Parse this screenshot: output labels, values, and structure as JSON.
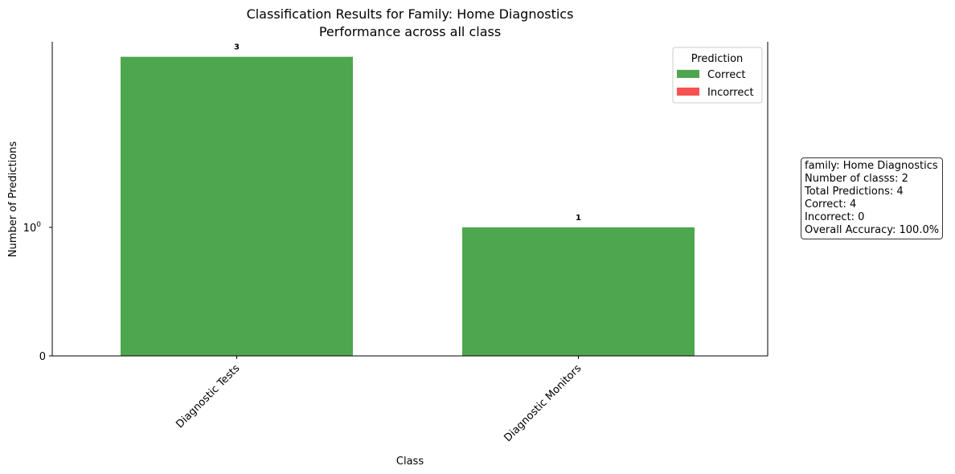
{
  "chart_data": {
    "type": "bar",
    "title": "Classification Results for Family: Home Diagnostics",
    "subtitle": "Performance across all class",
    "xlabel": "Class",
    "ylabel": "Number of Predictions",
    "y_scale": "symlog",
    "y_ticks": [
      {
        "value": 0,
        "label": "0"
      },
      {
        "value": 1,
        "label": "10",
        "sup": "0"
      }
    ],
    "ylim": [
      0,
      3.3
    ],
    "categories": [
      "Diagnostic Tests",
      "Diagnostic Monitors"
    ],
    "stacked": true,
    "series": [
      {
        "name": "Correct",
        "values": [
          3,
          1
        ],
        "color": "#4ea64e"
      },
      {
        "name": "Incorrect",
        "values": [
          0,
          0
        ],
        "color": "#f75252"
      }
    ],
    "data_labels": [
      "3",
      "1"
    ],
    "legend": {
      "title": "Prediction",
      "position": "top-right"
    },
    "grid": false
  },
  "info_box": {
    "lines": [
      "family: Home Diagnostics",
      "Number of classs: 2",
      "Total Predictions: 4",
      "Correct: 4",
      "Incorrect: 0",
      "Overall Accuracy: 100.0%"
    ]
  }
}
